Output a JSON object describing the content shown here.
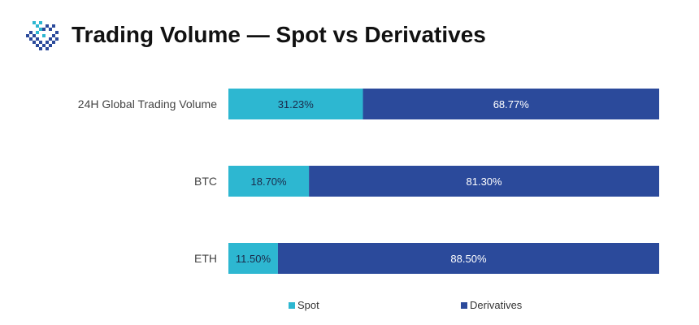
{
  "header": {
    "title": "Trading Volume — Spot vs Derivatives"
  },
  "colors": {
    "spot": "#2db7d1",
    "derivatives": "#2b4a9b",
    "spot_label": "#1b2a4a",
    "derivatives_label": "#ffffff"
  },
  "chart_data": {
    "type": "bar",
    "orientation": "horizontal",
    "stacked": true,
    "categories": [
      "24H Global Trading Volume",
      "BTC",
      "ETH"
    ],
    "series": [
      {
        "name": "Spot",
        "values": [
          31.23,
          18.7,
          11.5
        ],
        "labels": [
          "31.23%",
          "18.70%",
          "11.50%"
        ]
      },
      {
        "name": "Derivatives",
        "values": [
          68.77,
          81.3,
          88.5
        ],
        "labels": [
          "68.77%",
          "81.30%",
          "88.50%"
        ]
      }
    ],
    "xlim": [
      0,
      100
    ],
    "grid": false,
    "legend": "bottom"
  }
}
